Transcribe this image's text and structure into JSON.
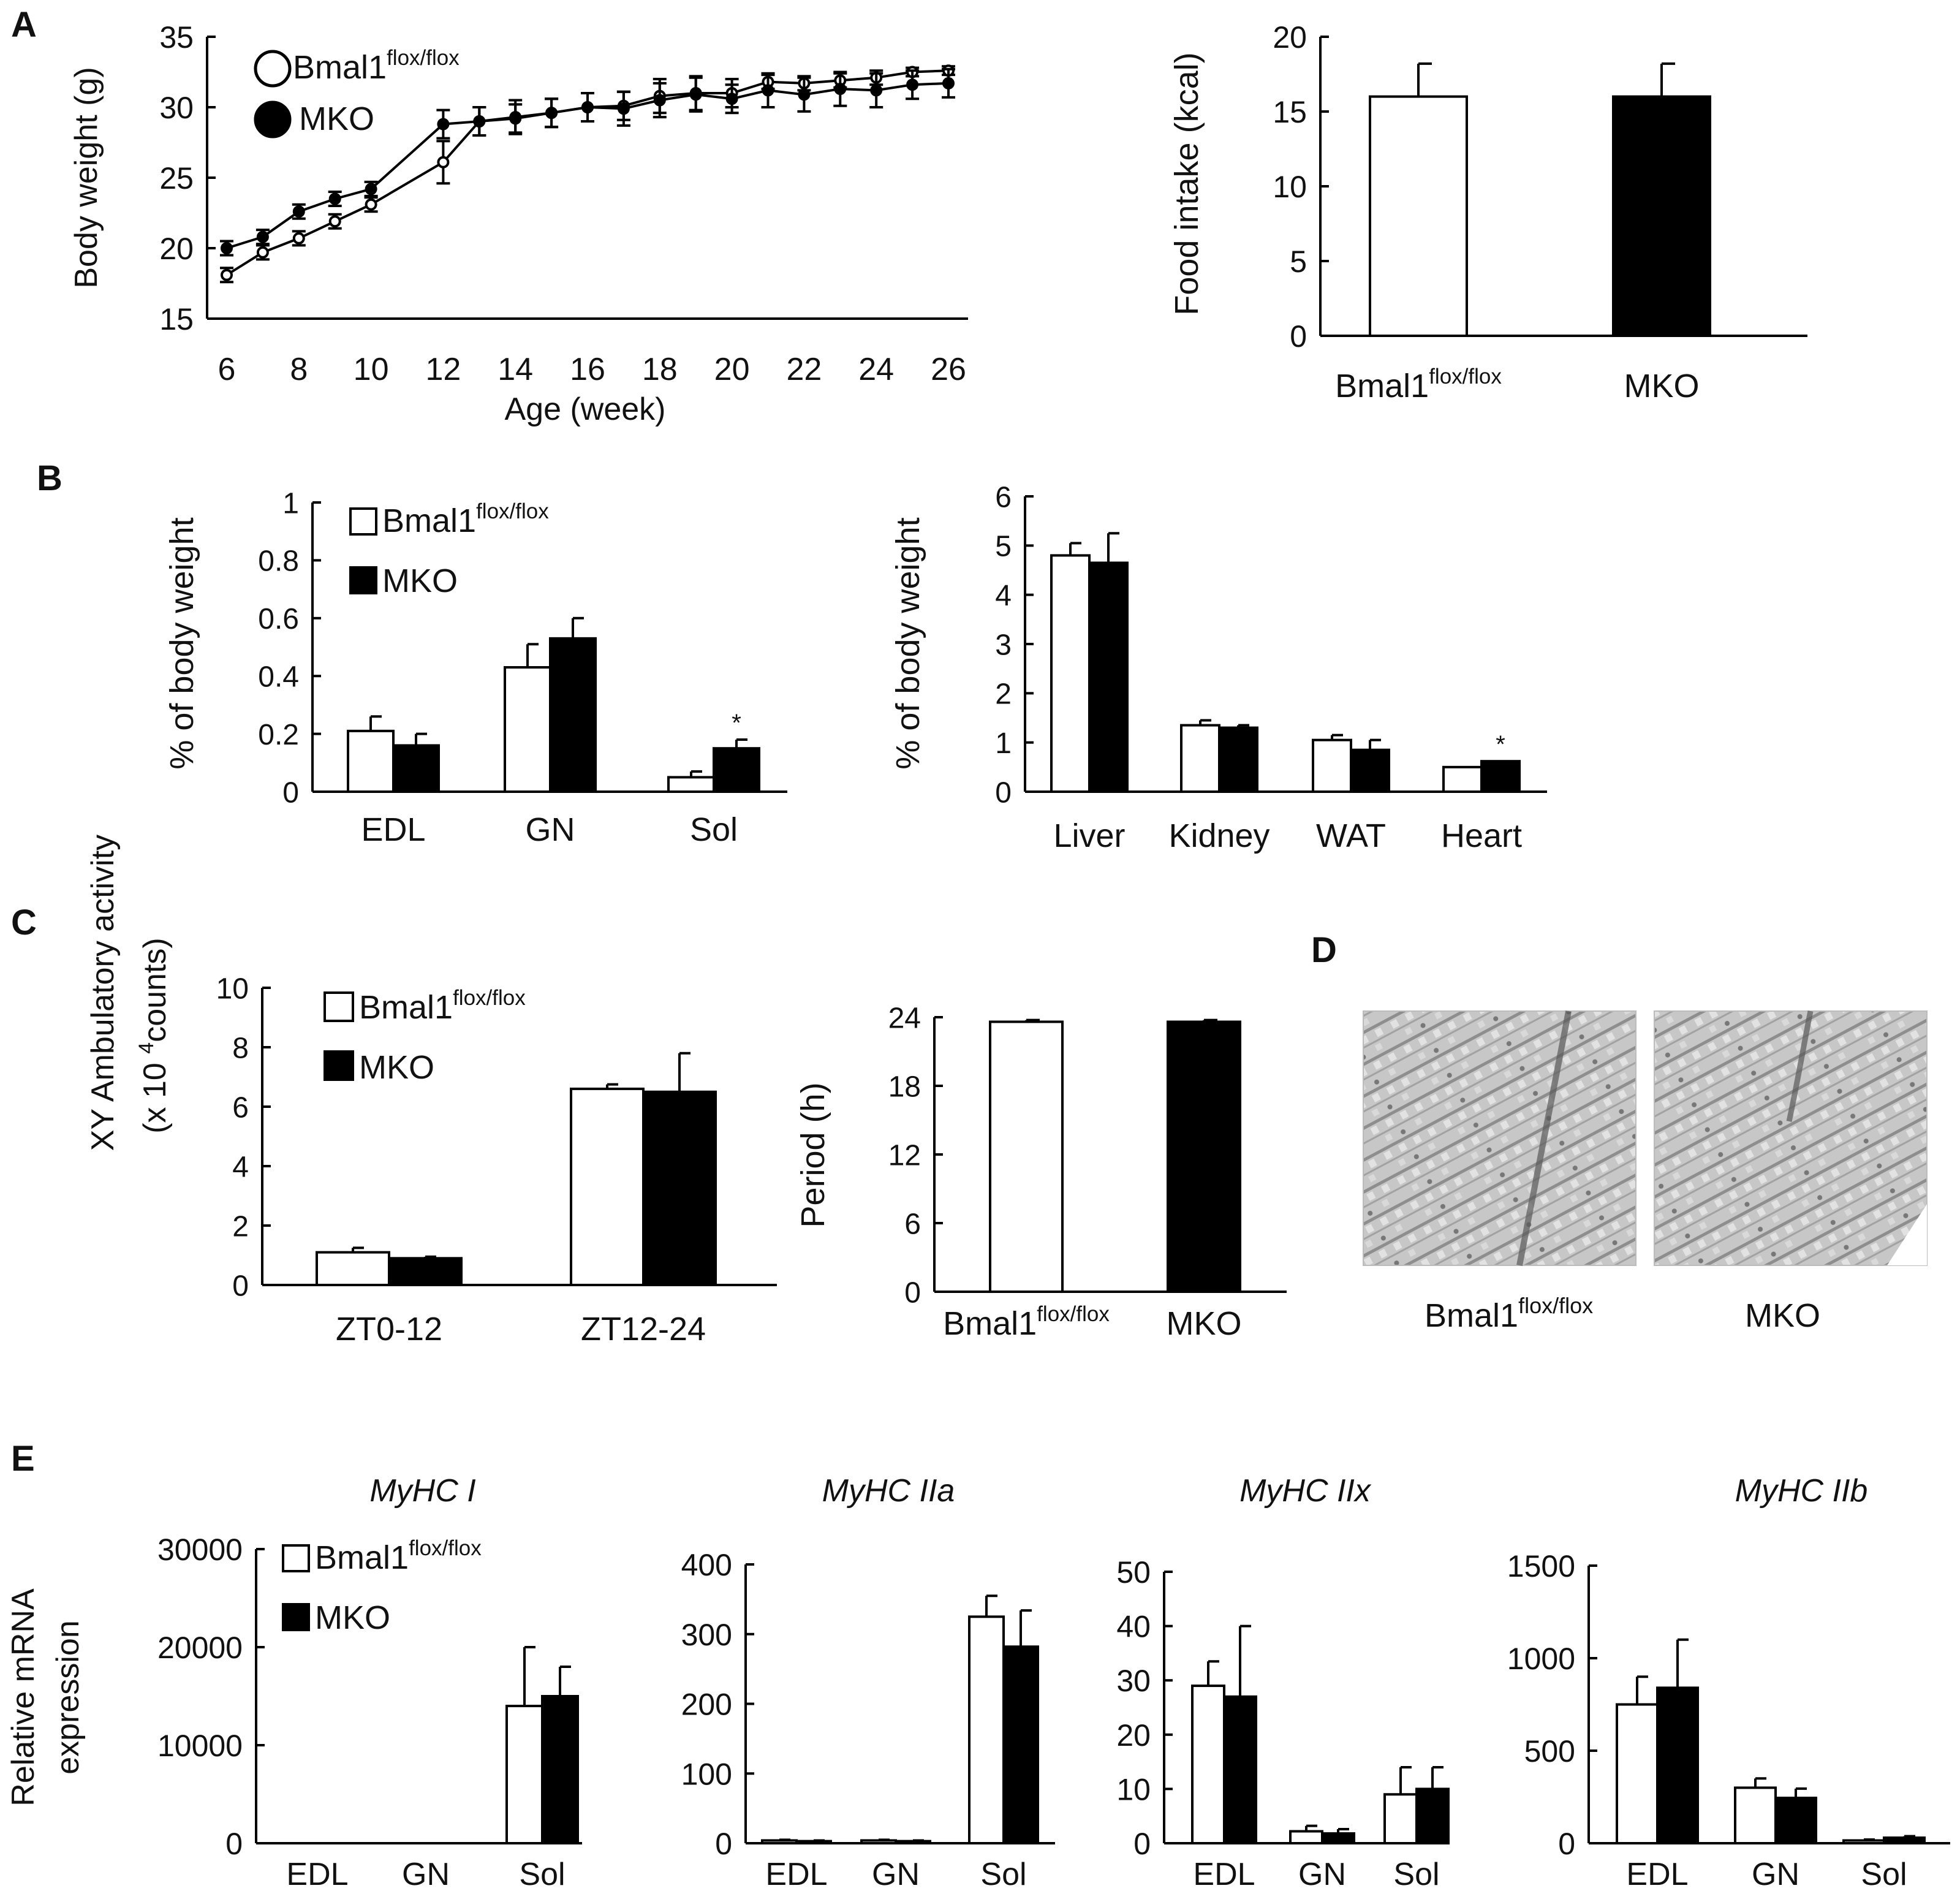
{
  "figure": {
    "panels": [
      "A",
      "B",
      "C",
      "D",
      "E"
    ]
  },
  "legend": {
    "control": "Bmal1",
    "control_sup": "flox/flox",
    "mko": "MKO"
  },
  "chart_data": [
    {
      "id": "A1",
      "type": "line",
      "title": "",
      "xlabel": "Age (week)",
      "ylabel": "Body weight (g)",
      "xlim": [
        6,
        26
      ],
      "ylim": [
        15,
        35
      ],
      "xticks": [
        6,
        8,
        10,
        12,
        14,
        16,
        18,
        20,
        22,
        24,
        26
      ],
      "yticks": [
        15,
        20,
        25,
        30,
        35
      ],
      "x": [
        6,
        7,
        8,
        9,
        10,
        12,
        13,
        14,
        15,
        16,
        17,
        18,
        19,
        20,
        21,
        22,
        23,
        24,
        25,
        26
      ],
      "series": [
        {
          "name": "Bmal1 flox/flox",
          "marker": "open-circle",
          "values": [
            18.1,
            19.7,
            20.7,
            21.9,
            23.1,
            26.1,
            29.0,
            29.2,
            29.6,
            30.0,
            30.1,
            30.8,
            31.0,
            31.0,
            31.8,
            31.7,
            31.9,
            32.1,
            32.5,
            32.6
          ],
          "errors": [
            0.5,
            0.5,
            0.5,
            0.5,
            0.5,
            1.5,
            1.0,
            1.0,
            1.0,
            1.0,
            1.0,
            1.2,
            1.2,
            1.0,
            0.5,
            0.5,
            0.5,
            0.5,
            0.3,
            0.3
          ]
        },
        {
          "name": "MKO",
          "marker": "filled-circle",
          "values": [
            20.0,
            20.8,
            22.6,
            23.5,
            24.2,
            28.8,
            29.0,
            29.3,
            29.6,
            30.0,
            29.9,
            30.5,
            30.9,
            30.6,
            31.2,
            30.9,
            31.3,
            31.2,
            31.6,
            31.7
          ],
          "errors": [
            0.5,
            0.5,
            0.5,
            0.5,
            0.5,
            1.0,
            1.0,
            1.2,
            1.0,
            1.0,
            1.2,
            1.2,
            1.2,
            1.0,
            1.2,
            1.2,
            1.2,
            1.2,
            1.0,
            1.0
          ]
        }
      ]
    },
    {
      "id": "A2",
      "type": "bar",
      "xlabel": "",
      "ylabel": "Food intake (kcal)",
      "ylim": [
        0,
        20
      ],
      "yticks": [
        0,
        5,
        10,
        15,
        20
      ],
      "categories": [
        "Bmal1 flox/flox",
        "MKO"
      ],
      "series": [
        {
          "name": "values",
          "values": [
            16.0,
            16.0
          ],
          "errors": [
            2.2,
            2.2
          ]
        }
      ]
    },
    {
      "id": "B1",
      "type": "bar",
      "xlabel": "",
      "ylabel": "% of body weight",
      "ylim": [
        0,
        1
      ],
      "yticks": [
        0,
        0.2,
        0.4,
        0.6,
        0.8,
        1
      ],
      "ytick_labels": [
        "0",
        "0.2",
        "0.4",
        "0.6",
        "0.8",
        "1"
      ],
      "categories": [
        "EDL",
        "GN",
        "Sol"
      ],
      "series": [
        {
          "name": "Bmal1 flox/flox",
          "values": [
            0.21,
            0.43,
            0.05
          ],
          "errors": [
            0.05,
            0.08,
            0.02
          ]
        },
        {
          "name": "MKO",
          "values": [
            0.16,
            0.53,
            0.15
          ],
          "errors": [
            0.04,
            0.07,
            0.03
          ]
        }
      ],
      "annotations": [
        {
          "category": "Sol",
          "text": "*"
        }
      ]
    },
    {
      "id": "B2",
      "type": "bar",
      "xlabel": "",
      "ylabel": "% of body weight",
      "ylim": [
        0,
        6
      ],
      "yticks": [
        0,
        1,
        2,
        3,
        4,
        5,
        6
      ],
      "categories": [
        "Liver",
        "Kidney",
        "WAT",
        "Heart"
      ],
      "series": [
        {
          "name": "Bmal1 flox/flox",
          "values": [
            4.8,
            1.35,
            1.05,
            0.5
          ],
          "errors": [
            0.25,
            0.1,
            0.1,
            0.0
          ]
        },
        {
          "name": "MKO",
          "values": [
            4.65,
            1.3,
            0.85,
            0.62
          ],
          "errors": [
            0.6,
            0.05,
            0.2,
            0.0
          ]
        }
      ],
      "annotations": [
        {
          "category": "Heart",
          "text": "*"
        }
      ]
    },
    {
      "id": "C1",
      "type": "bar",
      "xlabel": "",
      "ylabel": "XY Ambulatory activity",
      "ylabel2": "(x 10",
      "ylabel2_sup": "4",
      "ylabel2_end": "counts)",
      "ylim": [
        0,
        10
      ],
      "yticks": [
        0,
        2,
        4,
        6,
        8,
        10
      ],
      "categories": [
        "ZT0-12",
        "ZT12-24"
      ],
      "series": [
        {
          "name": "Bmal1 flox/flox",
          "values": [
            1.1,
            6.6
          ],
          "errors": [
            0.15,
            0.15
          ]
        },
        {
          "name": "MKO",
          "values": [
            0.9,
            6.5
          ],
          "errors": [
            0.05,
            1.3
          ]
        }
      ]
    },
    {
      "id": "C2",
      "type": "bar",
      "xlabel": "",
      "ylabel": "Period (h)",
      "ylim": [
        0,
        24
      ],
      "yticks": [
        0,
        6,
        12,
        18,
        24
      ],
      "categories": [
        "Bmal1 flox/flox",
        "MKO"
      ],
      "series": [
        {
          "name": "values",
          "values": [
            23.6,
            23.6
          ],
          "errors": [
            0.15,
            0.15
          ]
        }
      ]
    },
    {
      "id": "E1",
      "type": "bar",
      "title": "MyHC I",
      "xlabel": "",
      "ylabel": "Relative mRNA",
      "ylabel2": "expression",
      "ylim": [
        0,
        30000
      ],
      "yticks": [
        0,
        10000,
        20000,
        30000
      ],
      "categories": [
        "EDL",
        "GN",
        "Sol"
      ],
      "series": [
        {
          "name": "Bmal1 flox/flox",
          "values": [
            0,
            0,
            14000
          ],
          "errors": [
            0,
            0,
            6000
          ]
        },
        {
          "name": "MKO",
          "values": [
            0,
            0,
            15000
          ],
          "errors": [
            0,
            0,
            3000
          ]
        }
      ]
    },
    {
      "id": "E2",
      "type": "bar",
      "title": "MyHC IIa",
      "xlabel": "",
      "ylabel": "",
      "ylim": [
        0,
        400
      ],
      "yticks": [
        0,
        100,
        200,
        300,
        400
      ],
      "categories": [
        "EDL",
        "GN",
        "Sol"
      ],
      "series": [
        {
          "name": "Bmal1 flox/flox",
          "values": [
            4,
            4,
            325
          ],
          "errors": [
            1,
            1,
            30
          ]
        },
        {
          "name": "MKO",
          "values": [
            3,
            3,
            282
          ],
          "errors": [
            1,
            1,
            52
          ]
        }
      ]
    },
    {
      "id": "E3",
      "type": "bar",
      "title": "MyHC IIx",
      "xlabel": "",
      "ylabel": "",
      "ylim": [
        0,
        50
      ],
      "yticks": [
        0,
        10,
        20,
        30,
        40,
        50
      ],
      "categories": [
        "EDL",
        "GN",
        "Sol"
      ],
      "series": [
        {
          "name": "Bmal1 flox/flox",
          "values": [
            29,
            2.2,
            9
          ],
          "errors": [
            4.5,
            1.0,
            5
          ]
        },
        {
          "name": "MKO",
          "values": [
            27,
            1.8,
            10
          ],
          "errors": [
            13,
            0.8,
            4
          ]
        }
      ]
    },
    {
      "id": "E4",
      "type": "bar",
      "title": "MyHC IIb",
      "xlabel": "",
      "ylabel": "",
      "ylim": [
        0,
        1500
      ],
      "yticks": [
        0,
        500,
        1000,
        1500
      ],
      "categories": [
        "EDL",
        "GN",
        "Sol"
      ],
      "series": [
        {
          "name": "Bmal1 flox/flox",
          "values": [
            750,
            300,
            15
          ],
          "errors": [
            150,
            50,
            5
          ]
        },
        {
          "name": "MKO",
          "values": [
            840,
            245,
            30
          ],
          "errors": [
            260,
            50,
            8
          ]
        }
      ]
    }
  ],
  "panel_d": {
    "captions": [
      "Bmal1",
      "MKO"
    ],
    "caption_sup": "flox/flox"
  }
}
